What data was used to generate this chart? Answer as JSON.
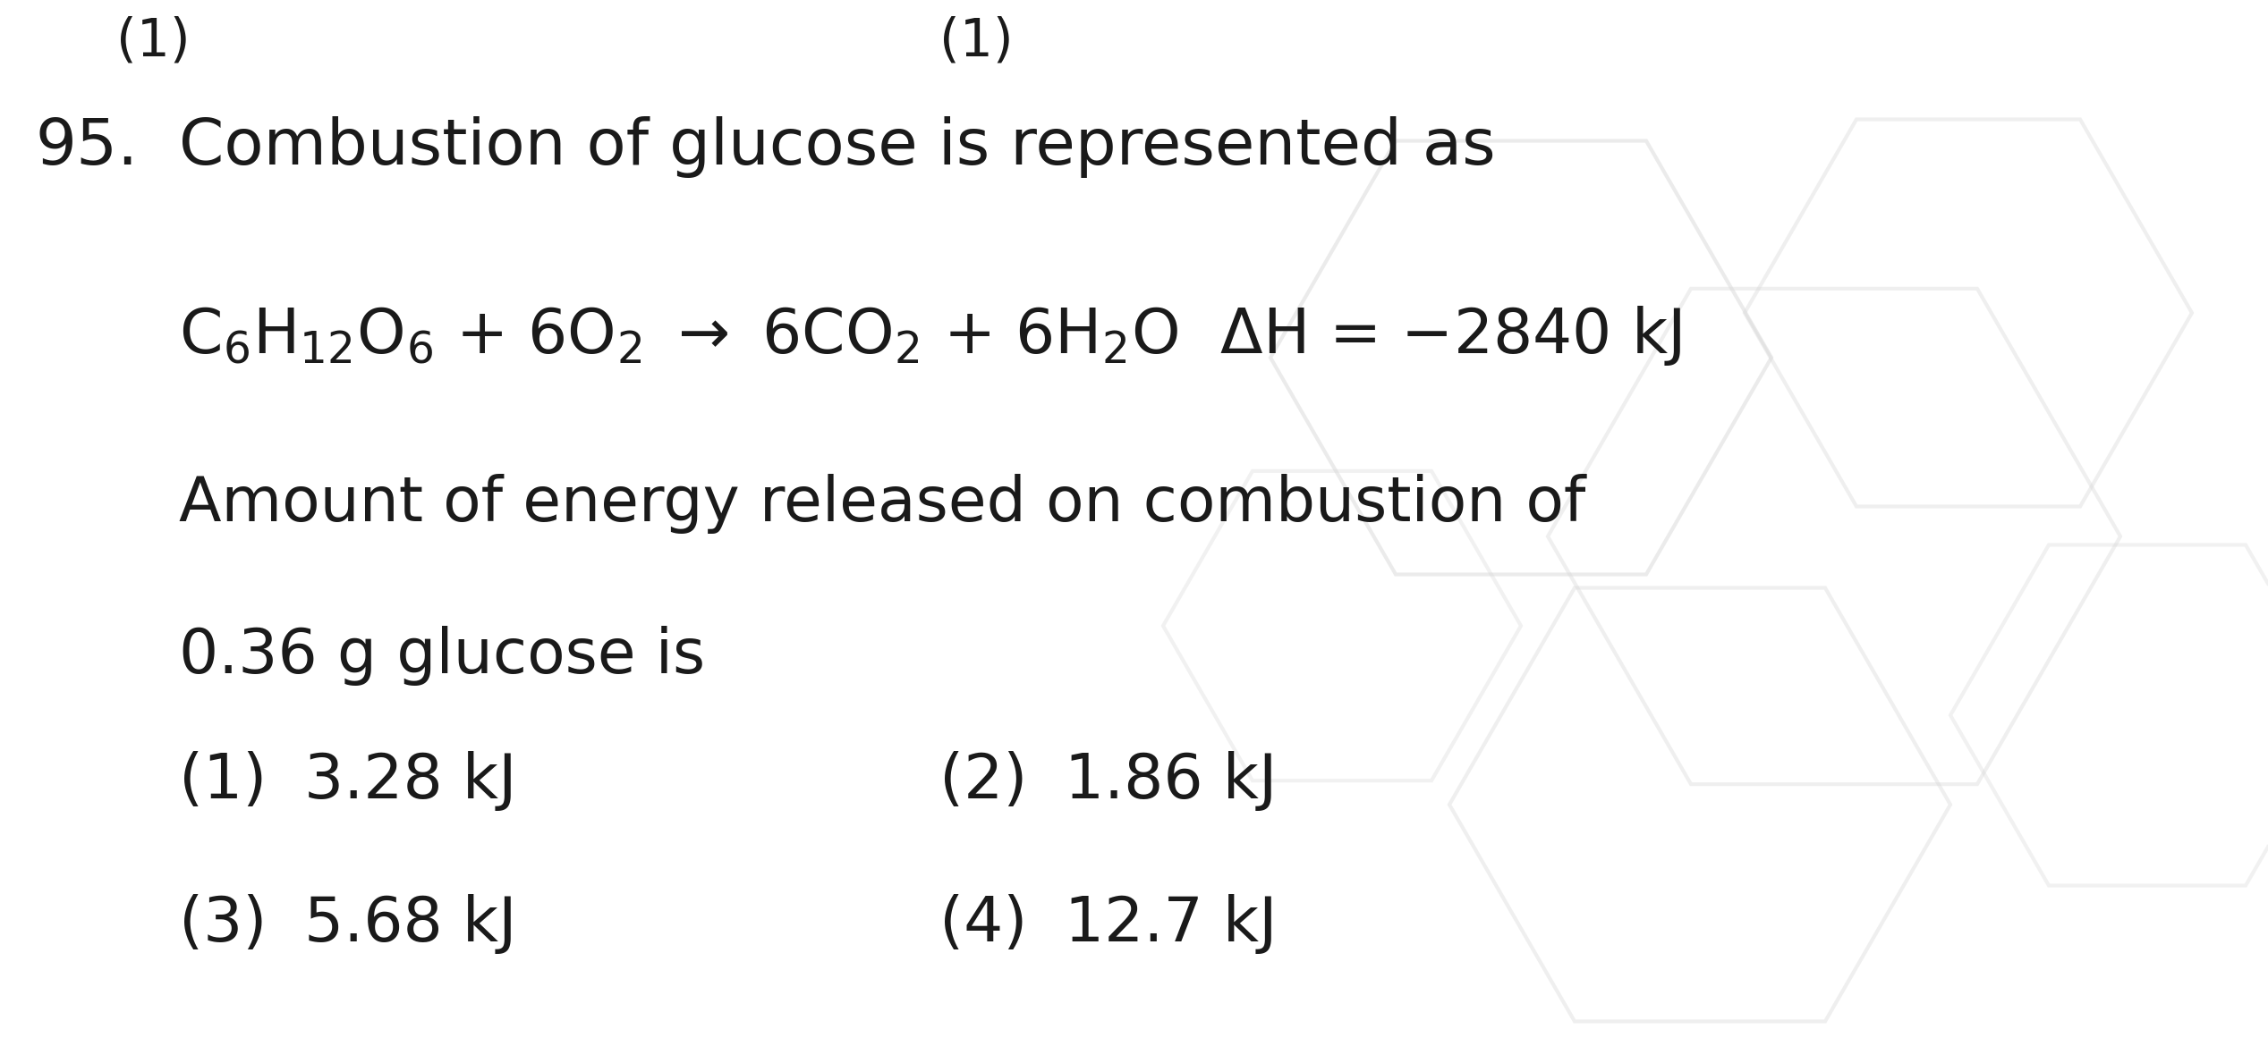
{
  "bg_color": "#ffffff",
  "text_color": "#1a1a1a",
  "question_number": "95.",
  "question_text": "Combustion of glucose is represented as",
  "body_line1": "Amount of energy released on combustion of",
  "body_line2": "0.36 g glucose is",
  "opt1_label": "(1)",
  "opt1_text": "3.28 kJ",
  "opt2_label": "(2)",
  "opt2_text": "1.86 kJ",
  "opt3_label": "(3)",
  "opt3_text": "5.68 kJ",
  "opt4_label": "(4)",
  "opt4_text": "12.7 kJ",
  "font_size_question": 52,
  "font_size_eq": 50,
  "font_size_body": 50,
  "font_size_options": 50,
  "watermark_color": "#d8d8d8",
  "top_partial_left": "(1)",
  "top_partial_right": "(1)"
}
